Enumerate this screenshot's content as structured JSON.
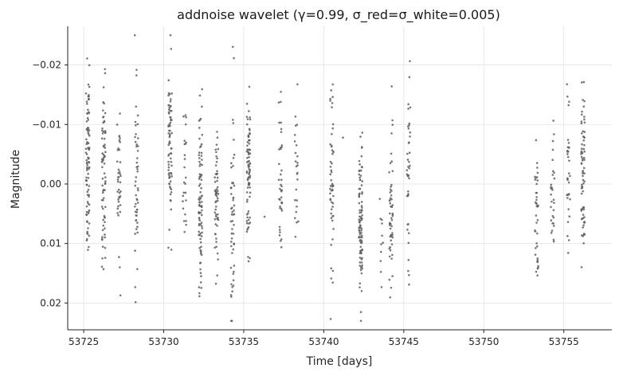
{
  "chart_data": {
    "type": "scatter",
    "title": "addnoise wavelet (γ=0.99, σ_red=σ_white=0.005)",
    "xlabel": "Time [days]",
    "ylabel": "Magnitude",
    "xlim": [
      53724.0,
      53758.0
    ],
    "ylim": [
      0.0245,
      -0.0265
    ],
    "y_inverted": true,
    "grid": true,
    "x_ticks": [
      53725,
      53730,
      53735,
      53740,
      53745,
      53750,
      53755
    ],
    "y_ticks": [
      -0.02,
      -0.01,
      0.0,
      0.01,
      0.02
    ],
    "x_tick_labels": [
      "53725",
      "53730",
      "53735",
      "53740",
      "53745",
      "53750",
      "53755"
    ],
    "y_tick_labels": [
      "−0.02",
      "−0.01",
      "0.00",
      "0.01",
      "0.02"
    ],
    "marker_color": "#606060",
    "observing_nights": [
      {
        "t": 53725.25,
        "n": 95,
        "mean": -0.003,
        "sd": 0.0075
      },
      {
        "t": 53726.25,
        "n": 75,
        "mean": -0.002,
        "sd": 0.0075
      },
      {
        "t": 53727.2,
        "n": 40,
        "mean": 0.0,
        "sd": 0.0065
      },
      {
        "t": 53728.3,
        "n": 50,
        "mean": 0.0,
        "sd": 0.0075
      },
      {
        "t": 53730.4,
        "n": 75,
        "mean": -0.007,
        "sd": 0.0065
      },
      {
        "t": 53731.3,
        "n": 25,
        "mean": -0.004,
        "sd": 0.007
      },
      {
        "t": 53732.3,
        "n": 90,
        "mean": 0.002,
        "sd": 0.007
      },
      {
        "t": 53733.3,
        "n": 60,
        "mean": 0.002,
        "sd": 0.007
      },
      {
        "t": 53734.3,
        "n": 55,
        "mean": 0.004,
        "sd": 0.0095
      },
      {
        "t": 53735.3,
        "n": 85,
        "mean": -0.002,
        "sd": 0.006
      },
      {
        "t": 53737.3,
        "n": 40,
        "mean": -0.001,
        "sd": 0.007
      },
      {
        "t": 53738.3,
        "n": 25,
        "mean": -0.001,
        "sd": 0.0065
      },
      {
        "t": 53740.5,
        "n": 55,
        "mean": -0.001,
        "sd": 0.0075
      },
      {
        "t": 53742.3,
        "n": 95,
        "mean": 0.006,
        "sd": 0.007
      },
      {
        "t": 53743.6,
        "n": 10,
        "mean": 0.011,
        "sd": 0.004
      },
      {
        "t": 53744.2,
        "n": 55,
        "mean": 0.005,
        "sd": 0.0075
      },
      {
        "t": 53745.3,
        "n": 40,
        "mean": -0.001,
        "sd": 0.0075
      },
      {
        "t": 53753.3,
        "n": 40,
        "mean": 0.006,
        "sd": 0.007
      },
      {
        "t": 53754.3,
        "n": 30,
        "mean": -0.002,
        "sd": 0.0065
      },
      {
        "t": 53755.3,
        "n": 35,
        "mean": -0.004,
        "sd": 0.007
      },
      {
        "t": 53756.2,
        "n": 75,
        "mean": -0.002,
        "sd": 0.0075
      }
    ],
    "isolated_points": [
      {
        "x": 53736.3,
        "y": 0.0055
      },
      {
        "x": 53741.2,
        "y": -0.0078
      },
      {
        "x": 53743.5,
        "y": 0.0025
      }
    ]
  }
}
